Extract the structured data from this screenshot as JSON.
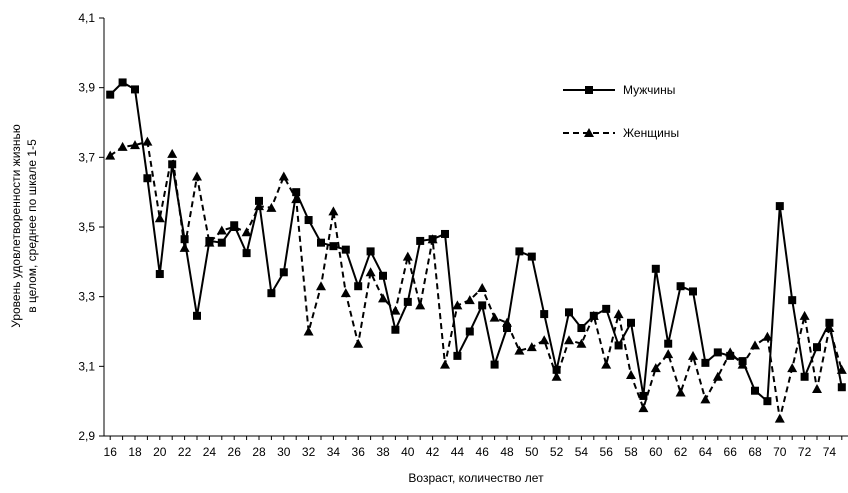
{
  "chart_data": {
    "type": "line",
    "title": "",
    "xlabel": "Возраст, количество лет",
    "ylabel_line1": "Уровень удовлетворенности жизнью",
    "ylabel_line2": "в целом, среднее по шкале 1-5",
    "xlim": [
      15.5,
      75.5
    ],
    "ylim": [
      2.9,
      4.1
    ],
    "x_ticks": [
      16,
      18,
      20,
      22,
      24,
      26,
      28,
      30,
      32,
      34,
      36,
      38,
      40,
      42,
      44,
      46,
      48,
      50,
      52,
      54,
      56,
      58,
      60,
      62,
      64,
      66,
      68,
      70,
      72,
      74
    ],
    "y_ticks": [
      2.9,
      3.1,
      3.3,
      3.5,
      3.7,
      3.9,
      4.1
    ],
    "y_tick_labels": [
      "2,9",
      "3,1",
      "3,3",
      "3,5",
      "3,7",
      "3,9",
      "4,1"
    ],
    "grid": false,
    "legend_position": "top-right",
    "x": [
      16,
      17,
      18,
      19,
      20,
      21,
      22,
      23,
      24,
      25,
      26,
      27,
      28,
      29,
      30,
      31,
      32,
      33,
      34,
      35,
      36,
      37,
      38,
      39,
      40,
      41,
      42,
      43,
      44,
      45,
      46,
      47,
      48,
      49,
      50,
      51,
      52,
      53,
      54,
      55,
      56,
      57,
      58,
      59,
      60,
      61,
      62,
      63,
      64,
      65,
      66,
      67,
      68,
      69,
      70,
      71,
      72,
      73,
      74,
      75
    ],
    "series": [
      {
        "name": "Мужчины",
        "color": "#000000",
        "line_style": "solid",
        "marker": "square",
        "values": [
          3.88,
          3.915,
          3.895,
          3.64,
          3.365,
          3.68,
          3.465,
          3.245,
          3.46,
          3.455,
          3.505,
          3.425,
          3.575,
          3.31,
          3.37,
          3.6,
          3.52,
          3.455,
          3.445,
          3.435,
          3.33,
          3.43,
          3.36,
          3.205,
          3.285,
          3.46,
          3.465,
          3.48,
          3.13,
          3.2,
          3.275,
          3.105,
          3.21,
          3.43,
          3.415,
          3.25,
          3.09,
          3.255,
          3.21,
          3.245,
          3.265,
          3.16,
          3.225,
          3.015,
          3.38,
          3.165,
          3.33,
          3.315,
          3.11,
          3.14,
          3.13,
          3.115,
          3.03,
          3.0,
          3.56,
          3.29,
          3.07,
          3.155,
          3.225,
          3.04
        ]
      },
      {
        "name": "Женщины",
        "color": "#000000",
        "line_style": "dashed",
        "marker": "triangle",
        "values": [
          3.705,
          3.73,
          3.735,
          3.745,
          3.525,
          3.71,
          3.44,
          3.645,
          3.455,
          3.49,
          3.5,
          3.485,
          3.56,
          3.555,
          3.645,
          3.58,
          3.2,
          3.33,
          3.545,
          3.31,
          3.165,
          3.37,
          3.295,
          3.26,
          3.415,
          3.275,
          3.465,
          3.105,
          3.275,
          3.29,
          3.325,
          3.24,
          3.225,
          3.145,
          3.155,
          3.175,
          3.07,
          3.175,
          3.165,
          3.245,
          3.105,
          3.25,
          3.075,
          2.98,
          3.095,
          3.135,
          3.025,
          3.13,
          3.005,
          3.07,
          3.14,
          3.105,
          3.16,
          3.185,
          2.95,
          3.095,
          3.245,
          3.035,
          3.21,
          3.09
        ]
      }
    ]
  }
}
